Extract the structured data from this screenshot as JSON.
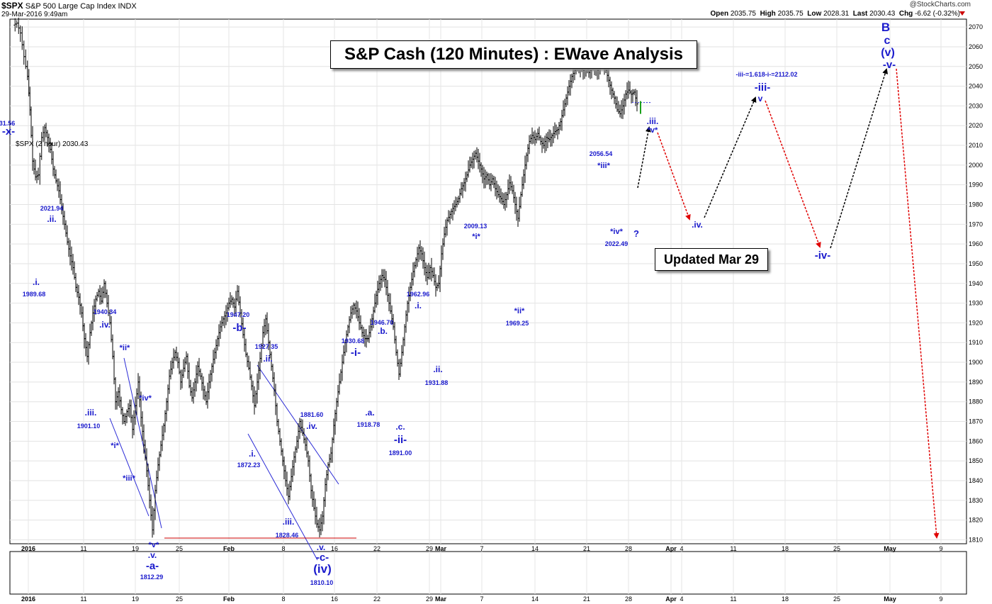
{
  "header": {
    "symbol": "$SPX",
    "name": "S&P 500 Large Cap Index",
    "exchange": "INDX",
    "date": "29-Mar-2016 9:49am",
    "brand": "@StockCharts.com",
    "ohlc": {
      "open_label": "Open",
      "open": "2035.75",
      "high_label": "High",
      "high": "2035.75",
      "low_label": "Low",
      "low": "2028.31",
      "last_label": "Last",
      "last": "2030.43",
      "chg_label": "Chg",
      "chg": "-6.62 (-0.32%)"
    }
  },
  "legend_text": "$SPX (2 hour) 2030.43",
  "title_box": "S&P Cash (120 Minutes) : EWave Analysis",
  "updated_box": "Updated Mar 29",
  "chart_data": {
    "type": "bar",
    "description_series": "S&P 500 2-hour OHLC bars with Elliott Wave labels and projected path",
    "y_axis": {
      "min": 1808,
      "max": 2074,
      "ticks": [
        1810,
        1820,
        1830,
        1840,
        1850,
        1860,
        1870,
        1880,
        1890,
        1900,
        1910,
        1920,
        1930,
        1940,
        1950,
        1960,
        1970,
        1980,
        1990,
        2000,
        2010,
        2020,
        2030,
        2040,
        2050,
        2060,
        2070
      ],
      "position": "right"
    },
    "x_ticks": [
      {
        "label": "2016",
        "x": 40,
        "bold": true
      },
      {
        "label": "11",
        "x": 118
      },
      {
        "label": "19",
        "x": 191
      },
      {
        "label": "25",
        "x": 253
      },
      {
        "label": "Feb",
        "x": 323,
        "bold": true
      },
      {
        "label": "8",
        "x": 400
      },
      {
        "label": "16",
        "x": 472
      },
      {
        "label": "22",
        "x": 532
      },
      {
        "label": "29",
        "x": 606
      },
      {
        "label": "Mar",
        "x": 622,
        "bold": true
      },
      {
        "label": "7",
        "x": 680
      },
      {
        "label": "14",
        "x": 755
      },
      {
        "label": "21",
        "x": 828
      },
      {
        "label": "28",
        "x": 887
      },
      {
        "label": "Apr",
        "x": 947,
        "bold": true
      },
      {
        "label": "4",
        "x": 962
      },
      {
        "label": "11",
        "x": 1035
      },
      {
        "label": "18",
        "x": 1108
      },
      {
        "label": "25",
        "x": 1181
      },
      {
        "label": "May",
        "x": 1256,
        "bold": true
      },
      {
        "label": "9",
        "x": 1328
      }
    ],
    "price_path": [
      [
        20,
        2071
      ],
      [
        25,
        2072
      ],
      [
        30,
        2067
      ],
      [
        35,
        2055
      ],
      [
        40,
        2045
      ],
      [
        43,
        2028
      ],
      [
        47,
        2002
      ],
      [
        51,
        1994
      ],
      [
        55,
        1995
      ],
      [
        60,
        2014
      ],
      [
        64,
        2019
      ],
      [
        68,
        2014
      ],
      [
        72,
        2008
      ],
      [
        76,
        1998
      ],
      [
        80,
        1992
      ],
      [
        84,
        1987
      ],
      [
        88,
        1978
      ],
      [
        92,
        1970
      ],
      [
        96,
        1961
      ],
      [
        100,
        1954
      ],
      [
        104,
        1948
      ],
      [
        108,
        1938
      ],
      [
        112,
        1933
      ],
      [
        116,
        1925
      ],
      [
        120,
        1912
      ],
      [
        124,
        1903
      ],
      [
        128,
        1915
      ],
      [
        132,
        1925
      ],
      [
        136,
        1932
      ],
      [
        140,
        1936
      ],
      [
        144,
        1931
      ],
      [
        148,
        1940
      ],
      [
        152,
        1930
      ],
      [
        156,
        1920
      ],
      [
        160,
        1903
      ],
      [
        164,
        1880
      ],
      [
        168,
        1885
      ],
      [
        172,
        1876
      ],
      [
        176,
        1870
      ],
      [
        180,
        1875
      ],
      [
        184,
        1878
      ],
      [
        188,
        1866
      ],
      [
        192,
        1878
      ],
      [
        196,
        1890
      ],
      [
        200,
        1872
      ],
      [
        204,
        1858
      ],
      [
        208,
        1845
      ],
      [
        212,
        1830
      ],
      [
        216,
        1815
      ],
      [
        220,
        1835
      ],
      [
        224,
        1848
      ],
      [
        228,
        1858
      ],
      [
        232,
        1868
      ],
      [
        236,
        1880
      ],
      [
        240,
        1893
      ],
      [
        244,
        1900
      ],
      [
        248,
        1905
      ],
      [
        252,
        1900
      ],
      [
        256,
        1890
      ],
      [
        260,
        1897
      ],
      [
        264,
        1903
      ],
      [
        268,
        1888
      ],
      [
        272,
        1882
      ],
      [
        276,
        1890
      ],
      [
        280,
        1898
      ],
      [
        284,
        1893
      ],
      [
        288,
        1886
      ],
      [
        292,
        1880
      ],
      [
        296,
        1890
      ],
      [
        300,
        1898
      ],
      [
        304,
        1905
      ],
      [
        308,
        1912
      ],
      [
        312,
        1918
      ],
      [
        316,
        1922
      ],
      [
        320,
        1925
      ],
      [
        324,
        1930
      ],
      [
        328,
        1932
      ],
      [
        332,
        1928
      ],
      [
        336,
        1936
      ],
      [
        340,
        1925
      ],
      [
        344,
        1914
      ],
      [
        348,
        1904
      ],
      [
        352,
        1897
      ],
      [
        356,
        1888
      ],
      [
        360,
        1878
      ],
      [
        364,
        1890
      ],
      [
        368,
        1902
      ],
      [
        372,
        1915
      ],
      [
        376,
        1922
      ],
      [
        380,
        1910
      ],
      [
        384,
        1898
      ],
      [
        388,
        1886
      ],
      [
        392,
        1870
      ],
      [
        396,
        1860
      ],
      [
        400,
        1850
      ],
      [
        404,
        1840
      ],
      [
        408,
        1832
      ],
      [
        412,
        1842
      ],
      [
        416,
        1852
      ],
      [
        420,
        1860
      ],
      [
        424,
        1870
      ],
      [
        428,
        1864
      ],
      [
        432,
        1858
      ],
      [
        436,
        1850
      ],
      [
        440,
        1835
      ],
      [
        444,
        1826
      ],
      [
        448,
        1818
      ],
      [
        452,
        1815
      ],
      [
        456,
        1822
      ],
      [
        460,
        1838
      ],
      [
        464,
        1848
      ],
      [
        468,
        1854
      ],
      [
        472,
        1868
      ],
      [
        476,
        1880
      ],
      [
        480,
        1890
      ],
      [
        484,
        1900
      ],
      [
        488,
        1910
      ],
      [
        492,
        1918
      ],
      [
        496,
        1925
      ],
      [
        500,
        1929
      ],
      [
        504,
        1926
      ],
      [
        508,
        1920
      ],
      [
        512,
        1915
      ],
      [
        516,
        1912
      ],
      [
        520,
        1912
      ],
      [
        524,
        1918
      ],
      [
        528,
        1926
      ],
      [
        532,
        1934
      ],
      [
        536,
        1940
      ],
      [
        540,
        1944
      ],
      [
        544,
        1942
      ],
      [
        548,
        1934
      ],
      [
        552,
        1926
      ],
      [
        556,
        1918
      ],
      [
        560,
        1905
      ],
      [
        564,
        1894
      ],
      [
        568,
        1905
      ],
      [
        572,
        1918
      ],
      [
        576,
        1930
      ],
      [
        580,
        1938
      ],
      [
        584,
        1946
      ],
      [
        588,
        1952
      ],
      [
        592,
        1958
      ],
      [
        596,
        1955
      ],
      [
        600,
        1948
      ],
      [
        604,
        1943
      ],
      [
        608,
        1948
      ],
      [
        612,
        1944
      ],
      [
        616,
        1938
      ],
      [
        620,
        1940
      ],
      [
        624,
        1955
      ],
      [
        628,
        1965
      ],
      [
        632,
        1972
      ],
      [
        636,
        1975
      ],
      [
        640,
        1978
      ],
      [
        644,
        1980
      ],
      [
        648,
        1983
      ],
      [
        652,
        1988
      ],
      [
        656,
        1991
      ],
      [
        660,
        1995
      ],
      [
        664,
        2000
      ],
      [
        668,
        2003
      ],
      [
        672,
        2006
      ],
      [
        676,
        2002
      ],
      [
        680,
        1998
      ],
      [
        684,
        1993
      ],
      [
        688,
        1995
      ],
      [
        692,
        1990
      ],
      [
        696,
        1993
      ],
      [
        700,
        1988
      ],
      [
        704,
        1985
      ],
      [
        708,
        1983
      ],
      [
        712,
        1980
      ],
      [
        716,
        1985
      ],
      [
        720,
        1991
      ],
      [
        724,
        1987
      ],
      [
        728,
        1980
      ],
      [
        732,
        1973
      ],
      [
        736,
        1985
      ],
      [
        740,
        1995
      ],
      [
        744,
        2005
      ],
      [
        748,
        2012
      ],
      [
        752,
        2015
      ],
      [
        756,
        2013
      ],
      [
        760,
        2016
      ],
      [
        764,
        2012
      ],
      [
        768,
        2010
      ],
      [
        772,
        2014
      ],
      [
        776,
        2013
      ],
      [
        780,
        2015
      ],
      [
        784,
        2017
      ],
      [
        788,
        2018
      ],
      [
        792,
        2022
      ],
      [
        796,
        2028
      ],
      [
        800,
        2034
      ],
      [
        804,
        2040
      ],
      [
        808,
        2045
      ],
      [
        812,
        2048
      ],
      [
        816,
        2050
      ],
      [
        820,
        2049
      ],
      [
        824,
        2048
      ],
      [
        828,
        2050
      ],
      [
        832,
        2047
      ],
      [
        836,
        2049
      ],
      [
        840,
        2051
      ],
      [
        844,
        2048
      ],
      [
        848,
        2052
      ],
      [
        852,
        2053
      ],
      [
        856,
        2048
      ],
      [
        860,
        2043
      ],
      [
        864,
        2038
      ],
      [
        868,
        2034
      ],
      [
        872,
        2028
      ],
      [
        876,
        2026
      ],
      [
        880,
        2030
      ],
      [
        884,
        2036
      ],
      [
        888,
        2038
      ],
      [
        892,
        2036
      ],
      [
        896,
        2037
      ],
      [
        900,
        2031
      ]
    ],
    "wave_labels": [
      {
        "text": "-x-",
        "x": 12,
        "y": 190,
        "size": 15
      },
      {
        "text": "31.56",
        "x": 10,
        "y": 177,
        "size": 9
      },
      {
        "text": "2021.94",
        "x": 73,
        "y": 297,
        "size": 9
      },
      {
        "text": ".ii.",
        "x": 73,
        "y": 313,
        "size": 12
      },
      {
        "text": ".i.",
        "x": 51,
        "y": 402,
        "size": 12
      },
      {
        "text": "1989.68",
        "x": 48,
        "y": 418,
        "size": 9
      },
      {
        "text": "1940.34",
        "x": 148,
        "y": 443,
        "size": 9
      },
      {
        "text": ".iv.",
        "x": 148,
        "y": 462,
        "size": 12
      },
      {
        "text": ".iii.",
        "x": 128,
        "y": 586,
        "size": 12
      },
      {
        "text": "1901.10",
        "x": 125,
        "y": 604,
        "size": 9
      },
      {
        "text": "*ii*",
        "x": 176,
        "y": 494,
        "size": 11
      },
      {
        "text": "*iv*",
        "x": 205,
        "y": 565,
        "size": 11
      },
      {
        "text": "*i*",
        "x": 162,
        "y": 632,
        "size": 11
      },
      {
        "text": "*iii*",
        "x": 182,
        "y": 678,
        "size": 11
      },
      {
        "text": "*v*",
        "x": 217,
        "y": 772,
        "size": 11
      },
      {
        "text": ".v.",
        "x": 215,
        "y": 787,
        "size": 12
      },
      {
        "text": "-a-",
        "x": 215,
        "y": 803,
        "size": 15
      },
      {
        "text": "1812.29",
        "x": 214,
        "y": 817,
        "size": 9
      },
      {
        "text": "1947.20",
        "x": 336,
        "y": 447,
        "size": 9
      },
      {
        "text": "-b-",
        "x": 338,
        "y": 467,
        "size": 15
      },
      {
        "text": "1927.35",
        "x": 376,
        "y": 492,
        "size": 9
      },
      {
        "text": ".ii.",
        "x": 378,
        "y": 510,
        "size": 12
      },
      {
        "text": ".i.",
        "x": 356,
        "y": 644,
        "size": 12
      },
      {
        "text": "1872.23",
        "x": 351,
        "y": 659,
        "size": 9
      },
      {
        "text": "1881.60",
        "x": 440,
        "y": 588,
        "size": 9
      },
      {
        "text": ".iv.",
        "x": 440,
        "y": 605,
        "size": 12
      },
      {
        "text": ".iii.",
        "x": 407,
        "y": 740,
        "size": 12
      },
      {
        "text": "1828.46",
        "x": 405,
        "y": 758,
        "size": 9
      },
      {
        "text": ".v.",
        "x": 453,
        "y": 776,
        "size": 12
      },
      {
        "text": "-c-",
        "x": 455,
        "y": 791,
        "size": 15
      },
      {
        "text": "(iv)",
        "x": 455,
        "y": 808,
        "size": 17
      },
      {
        "text": "1810.10",
        "x": 454,
        "y": 825,
        "size": 9
      },
      {
        "text": "1930.68",
        "x": 498,
        "y": 484,
        "size": 9
      },
      {
        "text": "-i-",
        "x": 502,
        "y": 502,
        "size": 15
      },
      {
        "text": ".a.",
        "x": 522,
        "y": 586,
        "size": 12
      },
      {
        "text": "1918.78",
        "x": 520,
        "y": 602,
        "size": 9
      },
      {
        "text": "1946.70",
        "x": 539,
        "y": 458,
        "size": 9
      },
      {
        "text": ".b.",
        "x": 540,
        "y": 471,
        "size": 12
      },
      {
        "text": ".c.",
        "x": 565,
        "y": 606,
        "size": 12
      },
      {
        "text": "-ii-",
        "x": 565,
        "y": 625,
        "size": 15
      },
      {
        "text": "1891.00",
        "x": 565,
        "y": 642,
        "size": 9
      },
      {
        "text": "1962.96",
        "x": 590,
        "y": 418,
        "size": 9
      },
      {
        "text": ".i.",
        "x": 590,
        "y": 435,
        "size": 12
      },
      {
        "text": ".ii.",
        "x": 618,
        "y": 525,
        "size": 12
      },
      {
        "text": "1931.88",
        "x": 616,
        "y": 543,
        "size": 9
      },
      {
        "text": "2009.13",
        "x": 671,
        "y": 322,
        "size": 9
      },
      {
        "text": "*i*",
        "x": 672,
        "y": 337,
        "size": 11
      },
      {
        "text": "*ii*",
        "x": 733,
        "y": 442,
        "size": 11
      },
      {
        "text": "1969.25",
        "x": 730,
        "y": 459,
        "size": 9
      },
      {
        "text": "2056.54",
        "x": 848,
        "y": 220,
        "size": 9
      },
      {
        "text": "*iii*",
        "x": 852,
        "y": 237,
        "size": 11
      },
      {
        "text": "*iv*",
        "x": 870,
        "y": 330,
        "size": 11
      },
      {
        "text": "2022.49",
        "x": 870,
        "y": 347,
        "size": 9
      },
      {
        "text": "?",
        "x": 898,
        "y": 334,
        "size": 13
      },
      {
        "text": ".iii.",
        "x": 921,
        "y": 175,
        "size": 12
      },
      {
        "text": "*v*",
        "x": 921,
        "y": 187,
        "size": 11
      },
      {
        "text": ".iv.",
        "x": 984,
        "y": 321,
        "size": 12
      },
      {
        "text": "-iii-=1.618-i-=2112.02",
        "x": 1082,
        "y": 108,
        "size": 9
      },
      {
        "text": "-iii-",
        "x": 1076,
        "y": 128,
        "size": 15
      },
      {
        "text": "v",
        "x": 1073,
        "y": 143,
        "size": 12
      },
      {
        "text": "-iv-",
        "x": 1161,
        "y": 365,
        "size": 15
      },
      {
        "text": "B",
        "x": 1250,
        "y": 44,
        "size": 17
      },
      {
        "text": "c",
        "x": 1252,
        "y": 62,
        "size": 16
      },
      {
        "text": "(v)",
        "x": 1253,
        "y": 79,
        "size": 16
      },
      {
        "text": "-v-",
        "x": 1255,
        "y": 96,
        "size": 15
      }
    ],
    "trend_lines": [
      {
        "x1": 175,
        "y1": 505,
        "x2": 228,
        "y2": 745
      },
      {
        "x1": 155,
        "y1": 590,
        "x2": 210,
        "y2": 728
      },
      {
        "x1": 363,
        "y1": 515,
        "x2": 478,
        "y2": 683
      },
      {
        "x1": 350,
        "y1": 612,
        "x2": 448,
        "y2": 790
      }
    ],
    "support_line": {
      "x1": 232,
      "y1": 759,
      "x2": 503,
      "y2": 759
    },
    "projection_black": [
      [
        [
          900,
          265
        ],
        [
          916,
          180
        ]
      ],
      [
        [
          994,
          307
        ],
        [
          1066,
          138
        ]
      ],
      [
        [
          1172,
          350
        ],
        [
          1251,
          98
        ]
      ]
    ],
    "projection_red": [
      [
        [
          928,
          187
        ],
        [
          973,
          309
        ]
      ],
      [
        [
          1080,
          142
        ],
        [
          1157,
          348
        ]
      ],
      [
        [
          1265,
          97
        ],
        [
          1322,
          758
        ]
      ]
    ]
  }
}
